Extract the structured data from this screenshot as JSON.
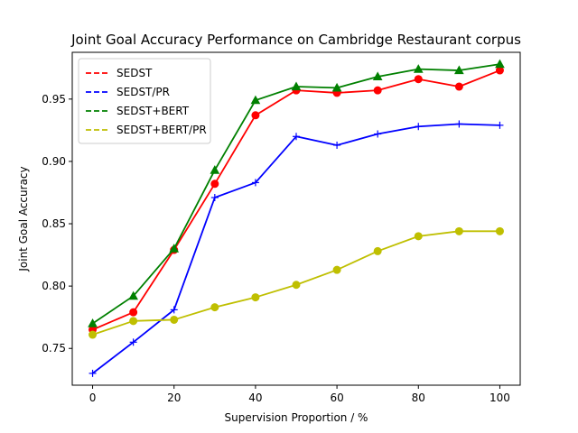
{
  "chart_data": {
    "type": "line",
    "title": "Joint Goal Accuracy Performance on Cambridge Restaurant corpus",
    "xlabel": "Supervision Proportion / %",
    "ylabel": "Joint Goal Accuracy",
    "xlim": [
      -5,
      105
    ],
    "ylim": [
      0.7205,
      0.9875
    ],
    "x_ticks": [
      0,
      20,
      40,
      60,
      80,
      100
    ],
    "y_ticks": [
      0.75,
      0.8,
      0.85,
      0.9,
      0.95
    ],
    "y_tick_labels": [
      "0.75",
      "0.80",
      "0.85",
      "0.90",
      "0.95"
    ],
    "grid": false,
    "legend_position": "top-left",
    "x": [
      0,
      10,
      20,
      30,
      40,
      50,
      60,
      70,
      80,
      90,
      100
    ],
    "series": [
      {
        "name": "SEDST",
        "color": "#ff0000",
        "marker": "circle",
        "values": [
          0.765,
          0.779,
          0.829,
          0.882,
          0.937,
          0.957,
          0.955,
          0.957,
          0.966,
          0.96,
          0.973
        ]
      },
      {
        "name": "SEDST/PR",
        "color": "#0000ff",
        "marker": "plus",
        "values": [
          0.73,
          0.755,
          0.781,
          0.871,
          0.883,
          0.92,
          0.913,
          0.922,
          0.928,
          0.93,
          0.929
        ]
      },
      {
        "name": "SEDST+BERT",
        "color": "#008000",
        "marker": "triangle",
        "values": [
          0.77,
          0.792,
          0.83,
          0.893,
          0.949,
          0.96,
          0.959,
          0.968,
          0.974,
          0.973,
          0.978
        ]
      },
      {
        "name": "SEDST+BERT/PR",
        "color": "#bfbf00",
        "marker": "circle",
        "values": [
          0.761,
          0.772,
          0.773,
          0.783,
          0.791,
          0.801,
          0.813,
          0.828,
          0.84,
          0.844,
          0.844
        ]
      }
    ]
  }
}
